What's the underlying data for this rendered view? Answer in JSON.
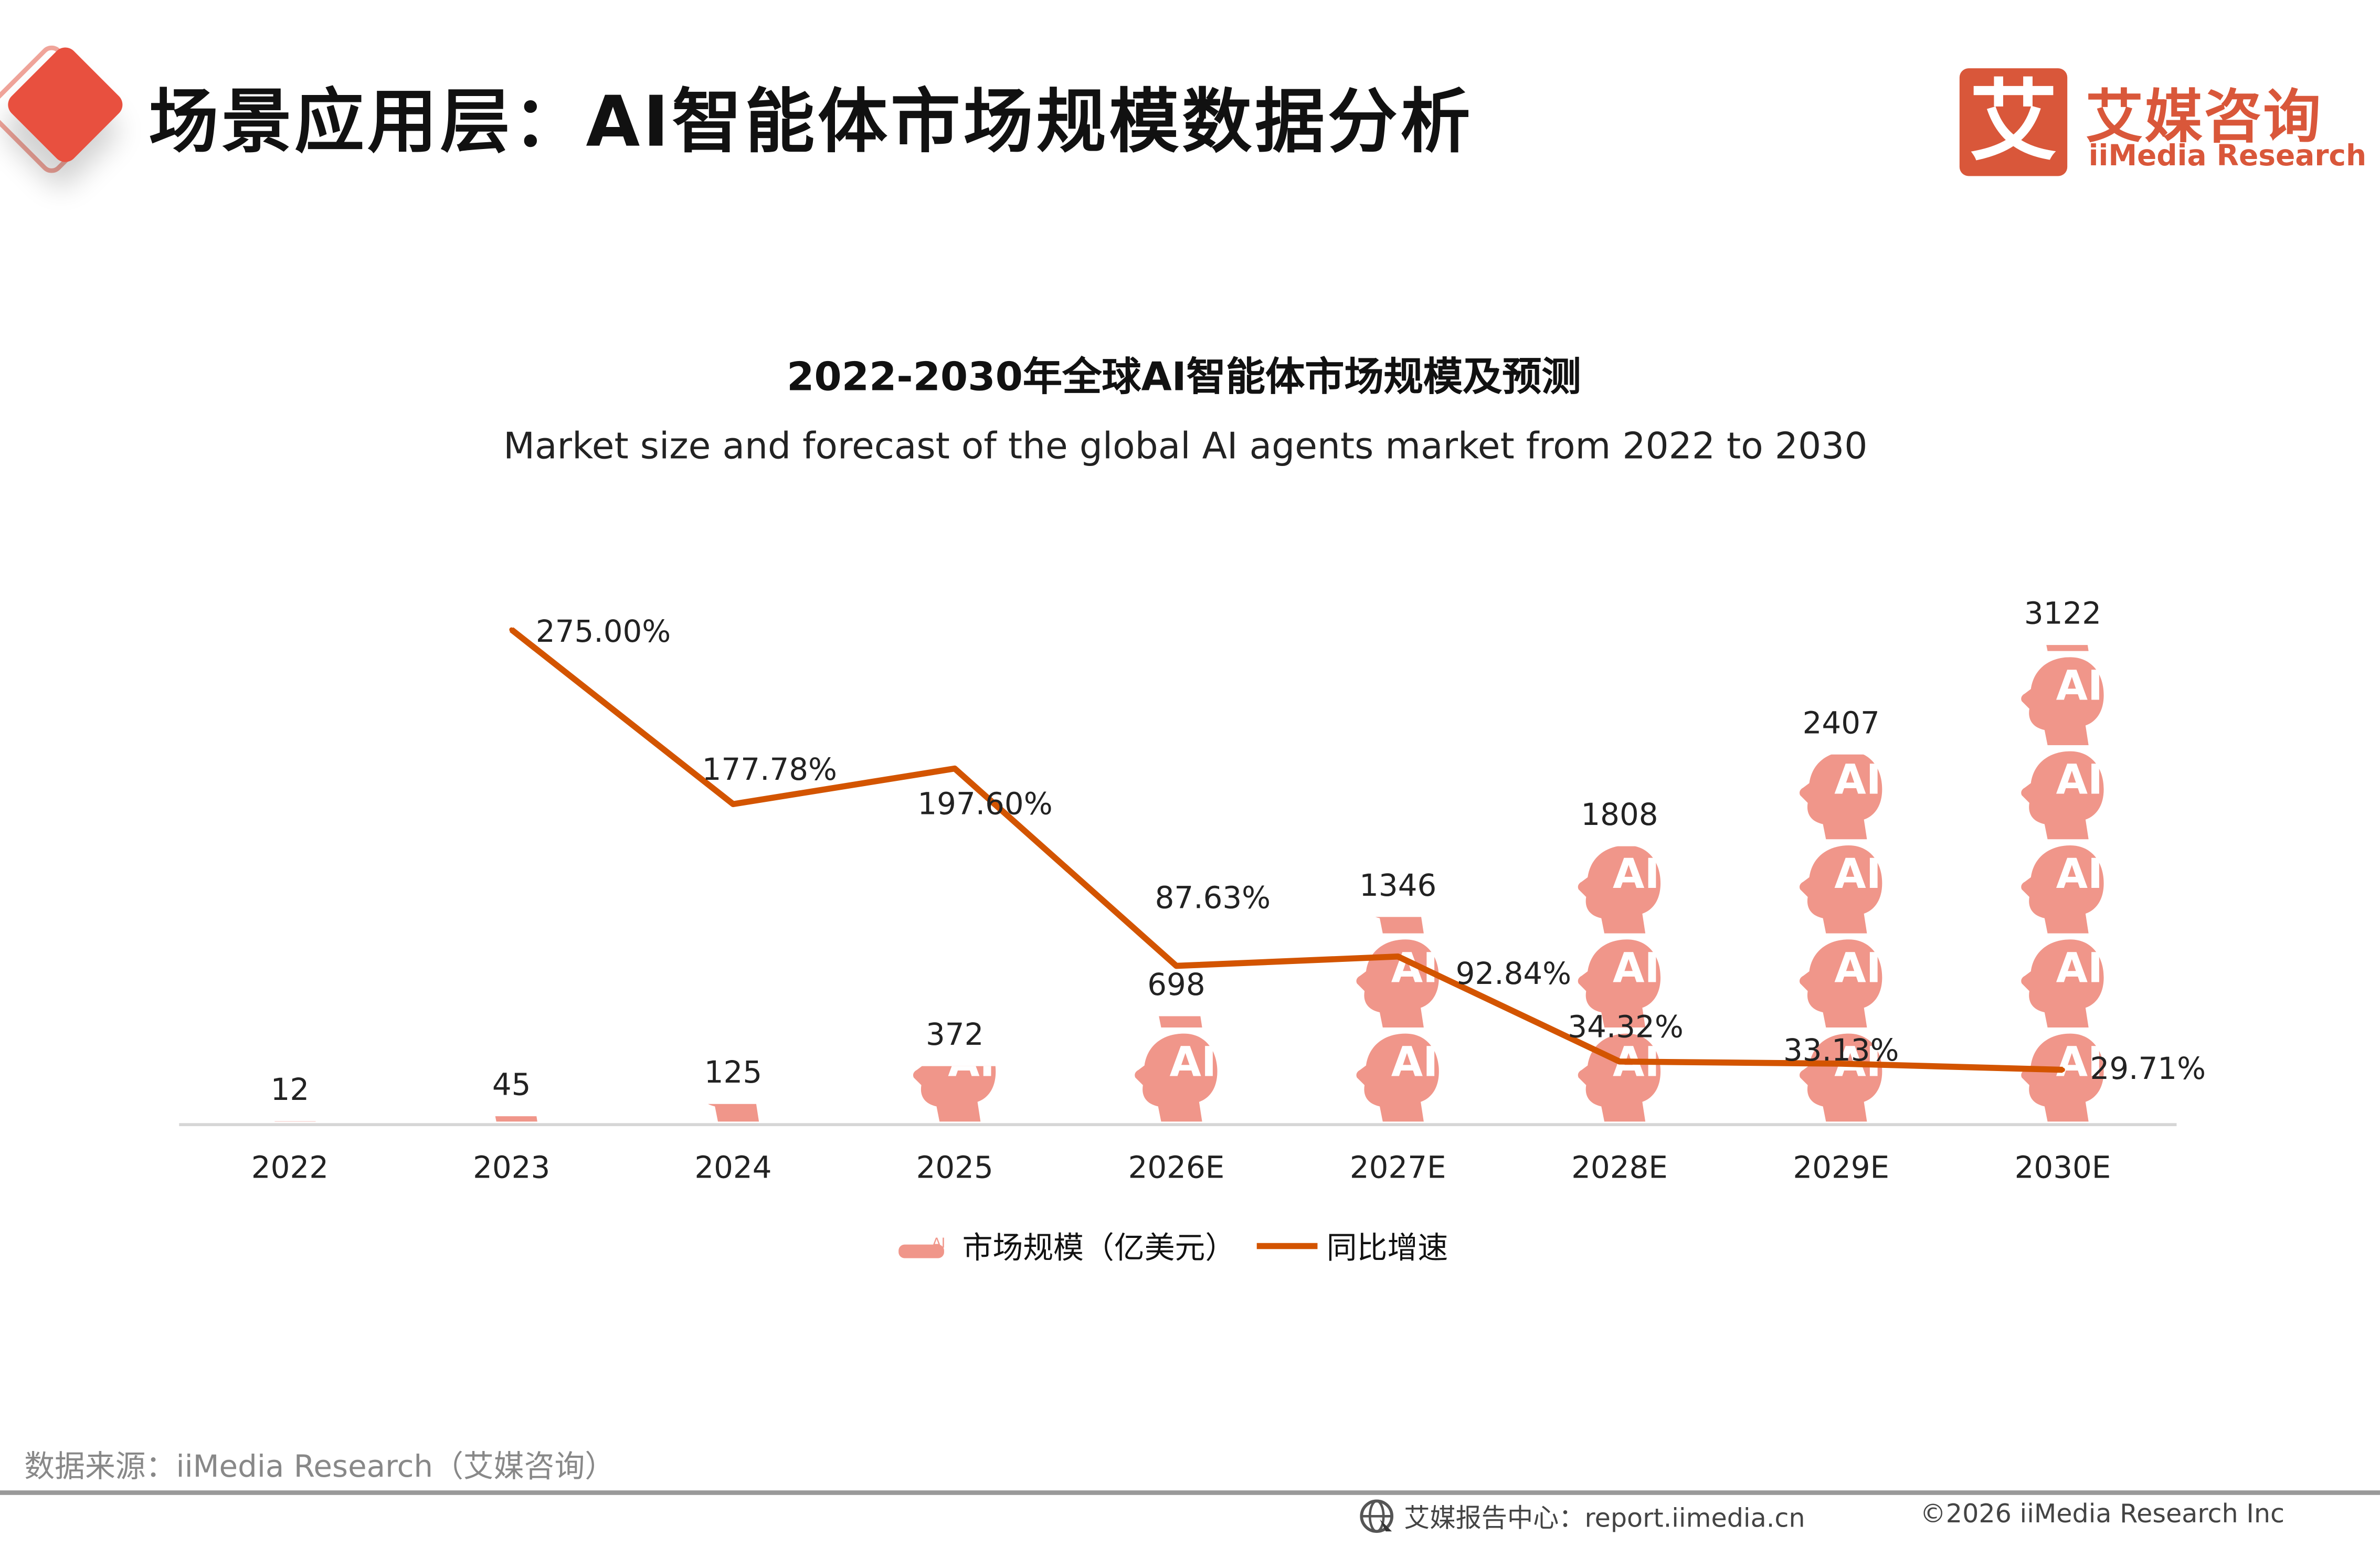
{
  "header": {
    "title": "场景应用层：AI智能体市场规模数据分析",
    "logo_mark": "艾",
    "logo_cn": "艾媒咨询",
    "logo_en": "iiMedia Research",
    "accent": "#e8503f",
    "brand_color": "#d9573a"
  },
  "chart_data": {
    "type": "bar+line",
    "title": "2022-2030年全球AI智能体市场规模及预测",
    "subtitle": "Market size and forecast of the global AI agents market from 2022 to 2030",
    "categories": [
      "2022",
      "2023",
      "2024",
      "2025",
      "2026E",
      "2027E",
      "2028E",
      "2029E",
      "2030E"
    ],
    "series": [
      {
        "name": "市场规模（亿美元）",
        "type": "pictograph-bar",
        "icon": "ai-head-icon",
        "color": "#f0968a",
        "values": [
          12,
          45,
          125,
          372,
          698,
          1346,
          1808,
          2407,
          3122
        ],
        "labels": [
          "12",
          "45",
          "125",
          "372",
          "698",
          "1346",
          "1808",
          "2407",
          "3122"
        ]
      },
      {
        "name": "同比增速",
        "type": "line",
        "color": "#d35400",
        "values": [
          null,
          275.0,
          177.78,
          197.6,
          87.63,
          92.84,
          34.32,
          33.13,
          29.71
        ],
        "labels": [
          "",
          "275.00%",
          "177.78%",
          "197.60%",
          "87.63%",
          "92.84%",
          "34.32%",
          "33.13%",
          "29.71%"
        ]
      }
    ],
    "legend_placement": "bottom",
    "grid": false
  },
  "footer": {
    "source": "数据来源：iiMedia Research（艾媒咨询）",
    "site": "艾媒报告中心：report.iimedia.cn",
    "copyright": "©2026  iiMedia Research  Inc"
  }
}
